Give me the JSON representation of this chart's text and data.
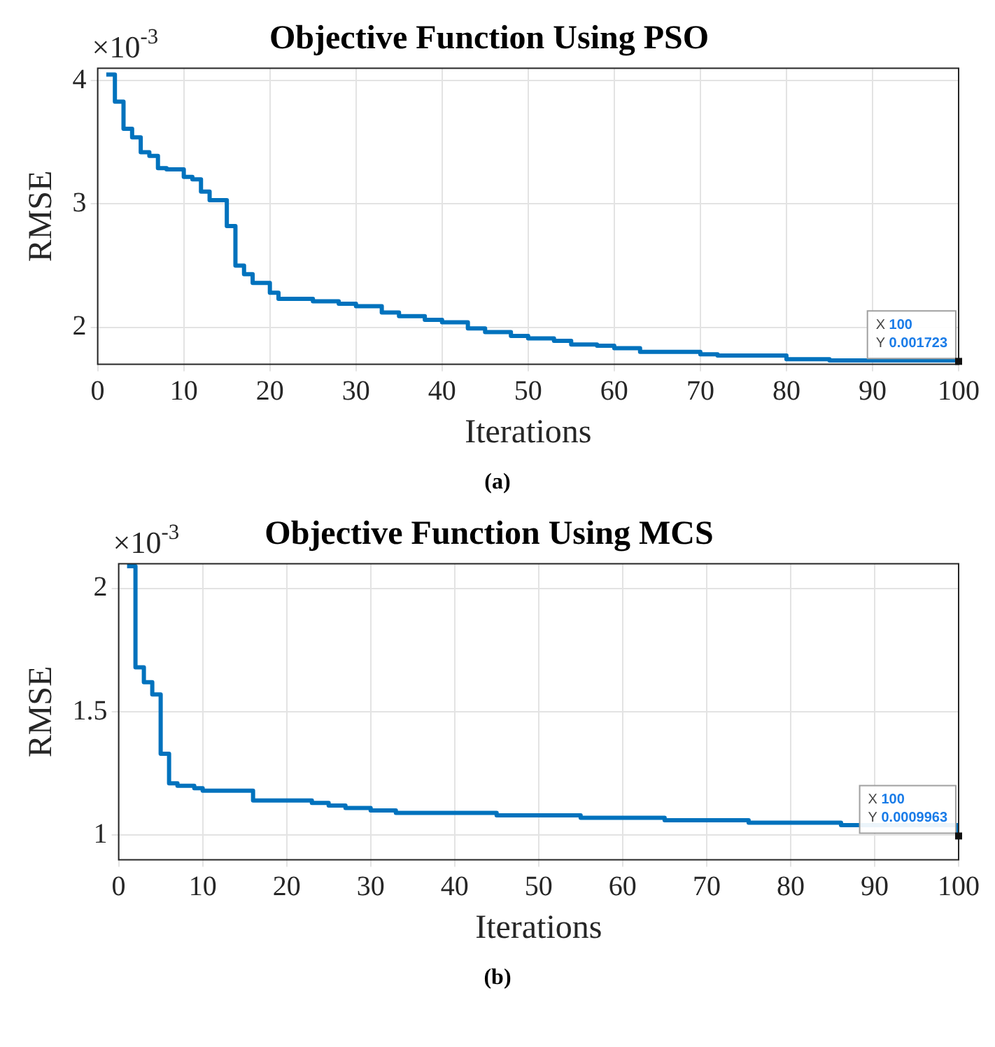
{
  "chart_data": [
    {
      "type": "step",
      "title": "Objective Function Using PSO",
      "xlabel": "Iterations",
      "ylabel": "RMSE",
      "series": [
        {
          "color": "#0072bd",
          "x": [
            1,
            2,
            3,
            4,
            5,
            6,
            7,
            8,
            10,
            11,
            12,
            13,
            15,
            16,
            17,
            18,
            20,
            21,
            25,
            28,
            30,
            33,
            35,
            38,
            40,
            43,
            45,
            48,
            50,
            53,
            55,
            58,
            60,
            63,
            70,
            72,
            80,
            85,
            100
          ],
          "values": [
            4.05,
            3.83,
            3.61,
            3.54,
            3.42,
            3.39,
            3.29,
            3.28,
            3.22,
            3.2,
            3.1,
            3.03,
            2.82,
            2.5,
            2.43,
            2.36,
            2.28,
            2.23,
            2.21,
            2.19,
            2.17,
            2.12,
            2.09,
            2.06,
            2.04,
            1.99,
            1.96,
            1.93,
            1.91,
            1.89,
            1.86,
            1.85,
            1.83,
            1.8,
            1.78,
            1.77,
            1.74,
            1.73,
            1.723
          ]
        }
      ],
      "xlim": [
        0,
        100
      ],
      "xticks": [
        0,
        10,
        20,
        30,
        40,
        50,
        60,
        70,
        80,
        90,
        100
      ],
      "ylim": [
        1.7,
        4.1
      ],
      "yticks": [
        2,
        3,
        4
      ],
      "grid": true,
      "line_style": "solid",
      "annotations": [
        "×10$^{-3}$",
        "(a)",
        "X 100",
        "Y 0.001723"
      ]
    },
    {
      "type": "step",
      "title": "Objective Function Using MCS",
      "xlabel": "Iterations",
      "ylabel": "RMSE",
      "series": [
        {
          "color": "#0072bd",
          "x": [
            1,
            2,
            3,
            4,
            5,
            6,
            7,
            9,
            10,
            16,
            23,
            25,
            27,
            30,
            33,
            45,
            55,
            65,
            75,
            86,
            100
          ],
          "values": [
            2.09,
            1.68,
            1.62,
            1.57,
            1.33,
            1.21,
            1.2,
            1.19,
            1.18,
            1.14,
            1.13,
            1.12,
            1.11,
            1.1,
            1.09,
            1.08,
            1.07,
            1.06,
            1.05,
            1.04,
            0.9963
          ]
        }
      ],
      "xlim": [
        0,
        100
      ],
      "xticks": [
        0,
        10,
        20,
        30,
        40,
        50,
        60,
        70,
        80,
        90,
        100
      ],
      "ylim": [
        0.9,
        2.1
      ],
      "yticks": [
        1,
        1.5,
        2
      ],
      "grid": true,
      "line_style": "solid",
      "annotations": [
        "×10$^{-3}$",
        "(b)",
        "X 100",
        "Y 0.0009963"
      ]
    }
  ]
}
